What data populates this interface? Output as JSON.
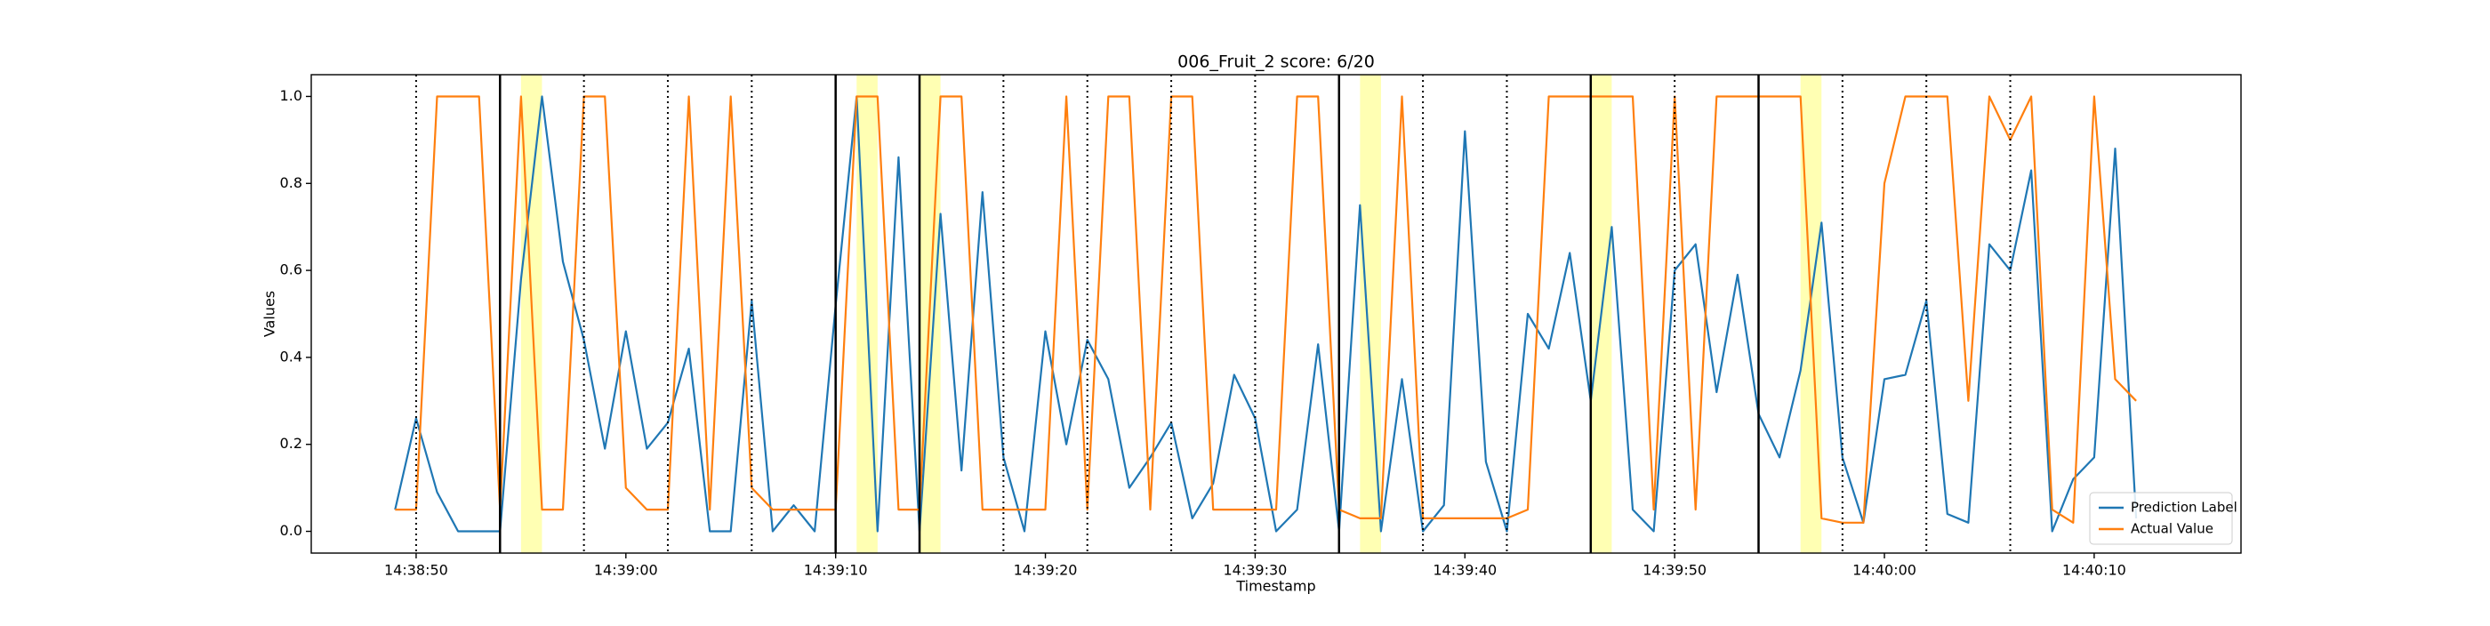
{
  "chart_data": {
    "type": "line",
    "title": "006_Fruit_2 score: 6/20",
    "x_label": "Timestamp",
    "y_label": "Values",
    "xlim": [
      "14:38:45",
      "14:40:17"
    ],
    "ylim": [
      -0.05,
      1.05
    ],
    "xticks": [
      "14:38:50",
      "14:39:00",
      "14:39:10",
      "14:39:20",
      "14:39:30",
      "14:39:40",
      "14:39:50",
      "14:40:00",
      "14:40:10"
    ],
    "yticks": [
      {
        "value": 0,
        "label": "0.0"
      },
      0.2,
      0.4,
      0.6,
      0.8,
      {
        "value": 1,
        "label": "1.0"
      }
    ],
    "grid": false,
    "legend": "lower right",
    "x": [
      "14:38:49",
      "14:38:50",
      "14:38:51",
      "14:38:52",
      "14:38:53",
      "14:38:54",
      "14:38:55",
      "14:38:56",
      "14:38:57",
      "14:38:58",
      "14:38:59",
      "14:39:00",
      "14:39:01",
      "14:39:02",
      "14:39:03",
      "14:39:04",
      "14:39:05",
      "14:39:06",
      "14:39:07",
      "14:39:08",
      "14:39:09",
      "14:39:10",
      "14:39:11",
      "14:39:12",
      "14:39:13",
      "14:39:14",
      "14:39:15",
      "14:39:16",
      "14:39:17",
      "14:39:18",
      "14:39:19",
      "14:39:20",
      "14:39:21",
      "14:39:22",
      "14:39:23",
      "14:39:24",
      "14:39:25",
      "14:39:26",
      "14:39:27",
      "14:39:28",
      "14:39:29",
      "14:39:30",
      "14:39:31",
      "14:39:32",
      "14:39:33",
      "14:39:34",
      "14:39:35",
      "14:39:36",
      "14:39:37",
      "14:39:38",
      "14:39:39",
      "14:39:40",
      "14:39:41",
      "14:39:42",
      "14:39:43",
      "14:39:44",
      "14:39:45",
      "14:39:46",
      "14:39:47",
      "14:39:48",
      "14:39:49",
      "14:39:50",
      "14:39:51",
      "14:39:52",
      "14:39:53",
      "14:39:54",
      "14:39:55",
      "14:39:56",
      "14:39:57",
      "14:39:58",
      "14:39:59",
      "14:40:00",
      "14:40:01",
      "14:40:02",
      "14:40:03",
      "14:40:04",
      "14:40:05",
      "14:40:06",
      "14:40:07",
      "14:40:08",
      "14:40:09",
      "14:40:10",
      "14:40:11",
      "14:40:12"
    ],
    "series": [
      {
        "name": "Prediction Label",
        "color": "#1f77b4",
        "values": [
          0.05,
          0.26,
          0.09,
          0,
          0,
          0,
          0.58,
          1.0,
          0.62,
          0.44,
          0.19,
          0.46,
          0.19,
          0.25,
          0.42,
          0,
          0,
          0.53,
          0,
          0.06,
          0,
          0.52,
          1.0,
          0,
          0.86,
          0,
          0.73,
          0.14,
          0.78,
          0.17,
          0,
          0.46,
          0.2,
          0.44,
          0.35,
          0.1,
          0.17,
          0.25,
          0.03,
          0.11,
          0.36,
          0.26,
          0,
          0.05,
          0.43,
          0,
          0.75,
          0,
          0.35,
          0,
          0.06,
          0.92,
          0.16,
          0,
          0.5,
          0.42,
          0.64,
          0.3,
          0.7,
          0.05,
          0,
          0.6,
          0.66,
          0.32,
          0.59,
          0.27,
          0.17,
          0.37,
          0.71,
          0.17,
          0.02,
          0.35,
          0.36,
          0.53,
          0.04,
          0.02,
          0.66,
          0.6,
          0.83,
          0,
          0.12,
          0.17,
          0.88,
          0.03
        ]
      },
      {
        "name": "Actual Value",
        "color": "#ff7f0e",
        "values": [
          0.05,
          0.05,
          1,
          1,
          1,
          0.05,
          1,
          0.05,
          0.05,
          1,
          1,
          0.1,
          0.05,
          0.05,
          1,
          0.05,
          1,
          0.1,
          0.05,
          0.05,
          0.05,
          0.05,
          1,
          1,
          0.05,
          0.05,
          1,
          1,
          0.05,
          0.05,
          0.05,
          0.05,
          1,
          0.05,
          1,
          1,
          0.05,
          1,
          1,
          0.05,
          0.05,
          0.05,
          0.05,
          1,
          1,
          0.05,
          0.03,
          0.03,
          1,
          0.03,
          0.03,
          0.03,
          0.03,
          0.03,
          0.05,
          1,
          1,
          1,
          1,
          1,
          0.05,
          1,
          0.05,
          1,
          1,
          1,
          1,
          1,
          0.03,
          0.02,
          0.02,
          0.8,
          1,
          1,
          1,
          0.3,
          1,
          0.9,
          1,
          0.05,
          0.02,
          1,
          0.35,
          0.3
        ]
      }
    ],
    "dotted_lines": [
      "14:38:50",
      "14:38:58",
      "14:39:02",
      "14:39:06",
      "14:39:18",
      "14:39:22",
      "14:39:26",
      "14:39:30",
      "14:39:38",
      "14:39:42",
      "14:39:50",
      "14:39:58",
      "14:40:02",
      "14:40:06"
    ],
    "solid_lines": [
      "14:38:54",
      "14:39:10",
      "14:39:14",
      "14:39:34",
      "14:39:46",
      "14:39:54"
    ],
    "highlight_spans": [
      [
        "14:38:55",
        "14:38:56"
      ],
      [
        "14:39:11",
        "14:39:12"
      ],
      [
        "14:39:14",
        "14:39:15"
      ],
      [
        "14:39:35",
        "14:39:36"
      ],
      [
        "14:39:46",
        "14:39:47"
      ],
      [
        "14:39:56",
        "14:39:57"
      ]
    ],
    "highlight_color": "#ffff99"
  }
}
